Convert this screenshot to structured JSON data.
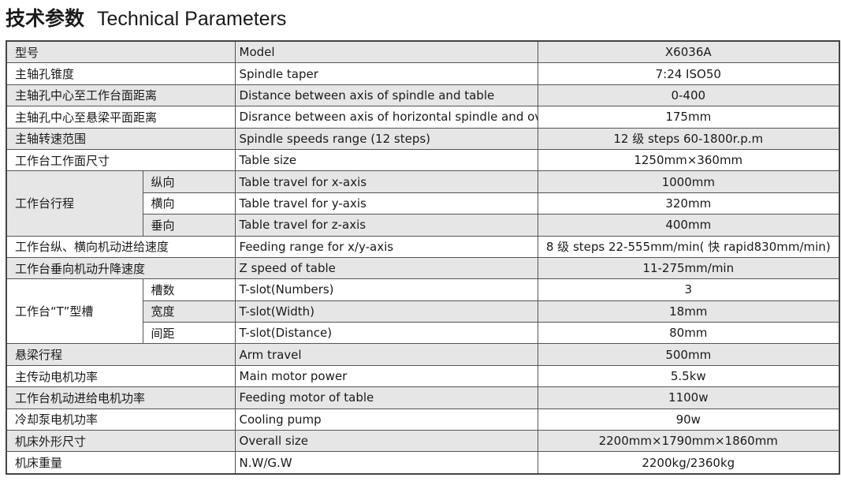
{
  "title": {
    "cn": "技术参数",
    "en": "Technical Parameters"
  },
  "rows": [
    {
      "cn": "型号",
      "en": "Model",
      "val": "X6036A"
    },
    {
      "cn": "主轴孔锥度",
      "en": "Spindle taper",
      "val": "7:24  ISO50"
    },
    {
      "cn": "主轴孔中心至工作台面距离",
      "en": "Distance between axis of spindle and table",
      "val": "0-400"
    },
    {
      "cn": "主轴孔中心至悬梁平面距离",
      "en": "Disrance between axis of horizontal spindle and overarm",
      "val": "175mm"
    },
    {
      "cn": "主轴转速范围",
      "en": "Spindle speeds range (12 steps)",
      "val": "12 级 steps  60-1800r.p.m"
    },
    {
      "cn": "工作台工作面尺寸",
      "en": "Table size",
      "val": "1250mm×360mm"
    },
    {
      "cn": "纵向",
      "en": "Table travel for x-axis",
      "val": "1000mm"
    },
    {
      "cn": "横向",
      "en": "Table travel for y-axis",
      "val": "320mm"
    },
    {
      "cn": "垂向",
      "en": "Table travel for z-axis",
      "val": "400mm"
    },
    {
      "cn": "工作台纵、横向机动进给速度",
      "en": "Feeding range for x/y-axis",
      "val": "8 级 steps 22-555mm/min( 快 rapid830mm/min)"
    },
    {
      "cn": "工作台垂向机动升降速度",
      "en": "Z speed of table",
      "val": "11-275mm/min"
    },
    {
      "cn": "槽数",
      "en": "T-slot(Numbers)",
      "val": "3"
    },
    {
      "cn": "宽度",
      "en": "T-slot(Width)",
      "val": "18mm"
    },
    {
      "cn": "间距",
      "en": "T-slot(Distance)",
      "val": "80mm"
    },
    {
      "cn": "悬梁行程",
      "en": "Arm travel",
      "val": "500mm"
    },
    {
      "cn": "主传动电机功率",
      "en": "Main motor power",
      "val": "5.5kw"
    },
    {
      "cn": "工作台机动进给电机功率",
      "en": "Feeding motor of table",
      "val": "1100w"
    },
    {
      "cn": "冷却泵电机功率",
      "en": "Cooling pump",
      "val": "90w"
    },
    {
      "cn": "机床外形尺寸",
      "en": "Overall size",
      "val": "2200mm×1790mm×1860mm"
    },
    {
      "cn": "机床重量",
      "en": "N.W/G.W",
      "val": "2200kg/2360kg"
    }
  ],
  "groups": {
    "table_travel": "工作台行程",
    "t_slot": "工作台“T”型槽"
  },
  "colors": {
    "shade": "#e6e6e6",
    "border": "#555555"
  }
}
